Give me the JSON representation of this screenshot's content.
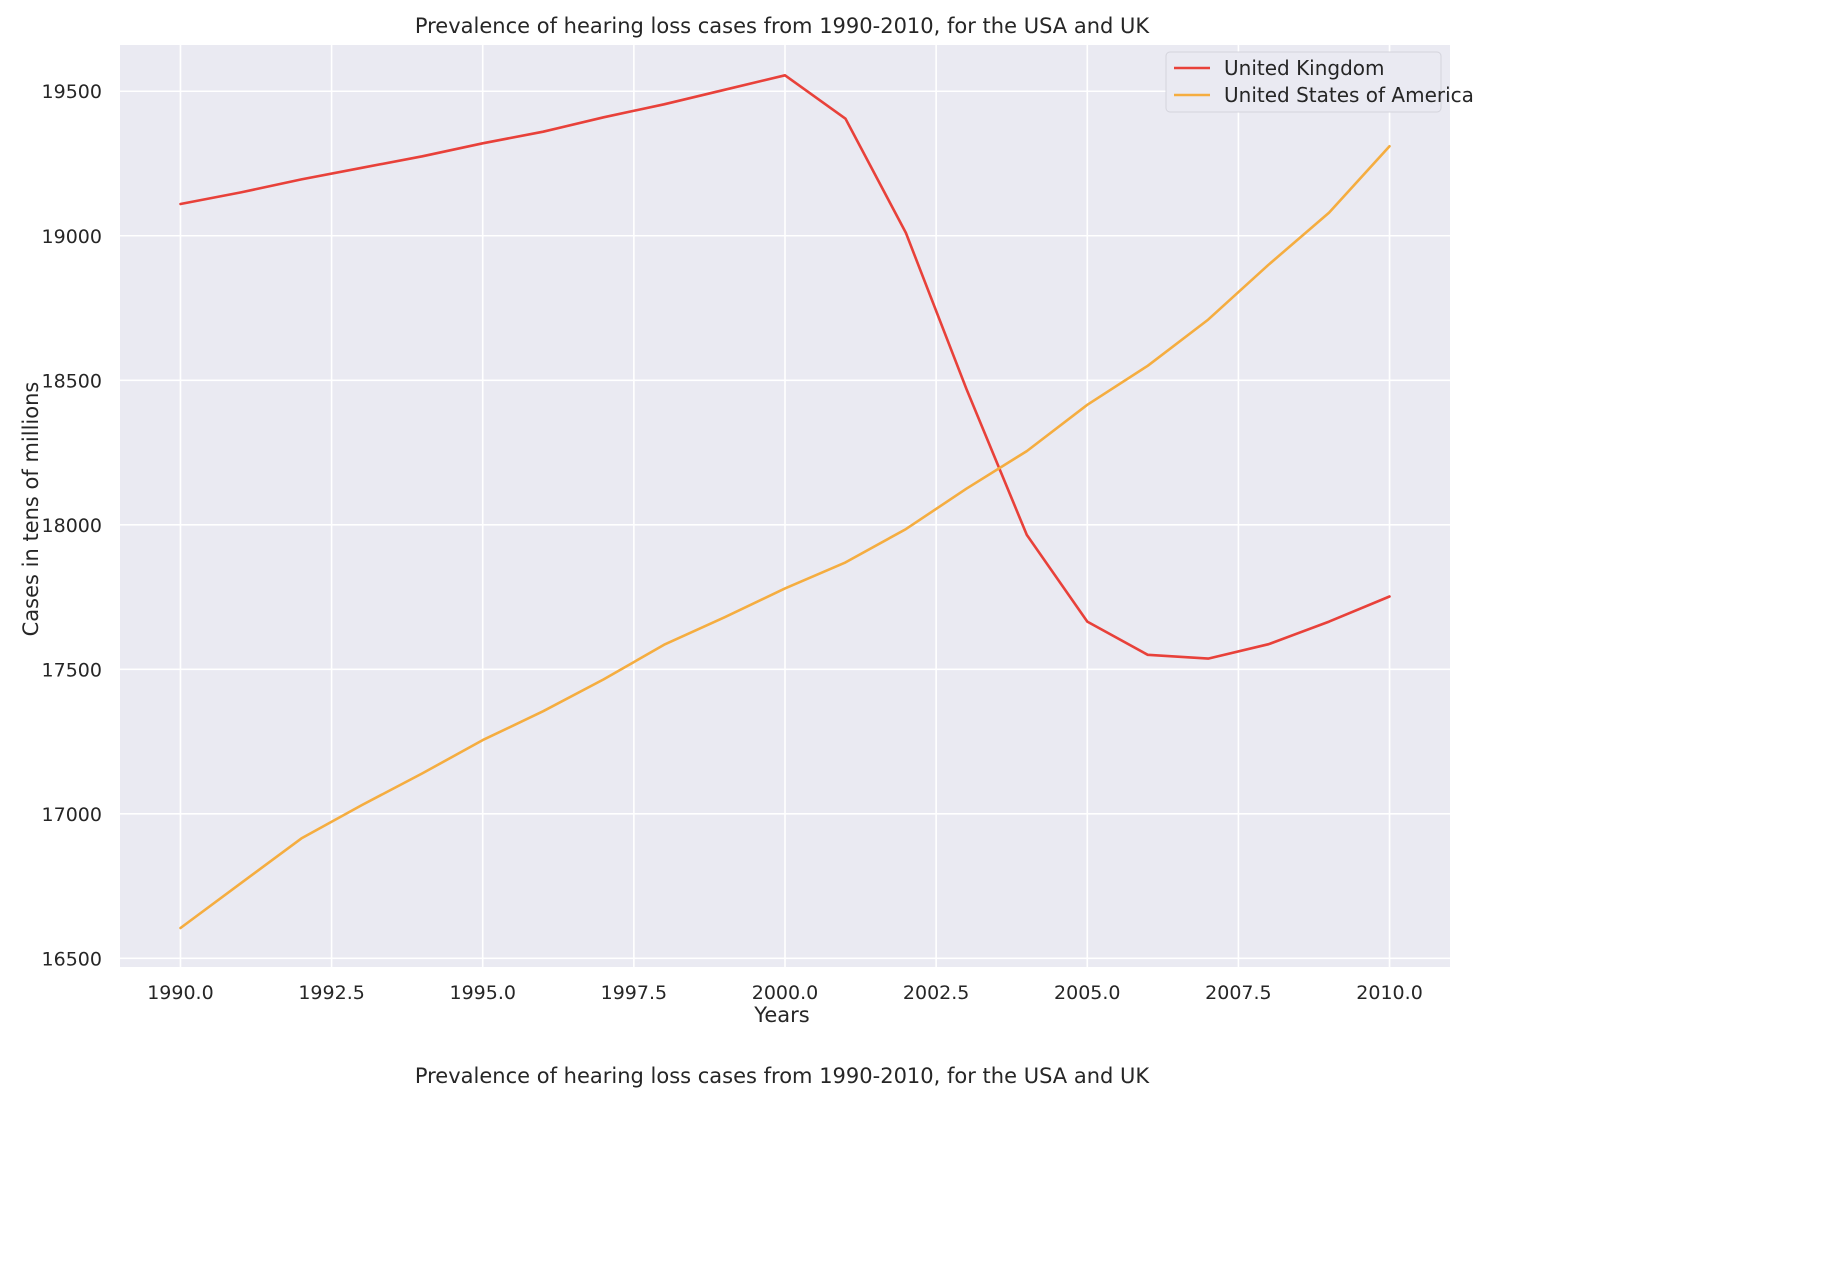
{
  "chart_data": {
    "type": "line",
    "title": "Prevalence of hearing loss cases from 1990-2010, for the USA and UK",
    "caption": "Prevalence of hearing loss cases from 1990-2010, for the USA and UK",
    "xlabel": "Years",
    "ylabel": "Cases in tens of millions",
    "x": [
      1990,
      1991,
      1992,
      1993,
      1994,
      1995,
      1996,
      1997,
      1998,
      1999,
      2000,
      2001,
      2002,
      2003,
      2004,
      2005,
      2006,
      2007,
      2008,
      2009,
      2010
    ],
    "xlim": [
      1989,
      2011
    ],
    "ylim": [
      16470,
      19660
    ],
    "xticks": [
      1990,
      1992.5,
      1995,
      1997.5,
      2000,
      2002.5,
      2005,
      2007.5,
      2010
    ],
    "xtick_labels": [
      "1990.0",
      "1992.5",
      "1995.0",
      "1997.5",
      "2000.0",
      "2002.5",
      "2005.0",
      "2007.5",
      "2010.0"
    ],
    "yticks": [
      16500,
      17000,
      17500,
      18000,
      18500,
      19000,
      19500
    ],
    "ytick_labels": [
      "16500",
      "17000",
      "17500",
      "18000",
      "18500",
      "19000",
      "19500"
    ],
    "grid": true,
    "legend_position": "top-right",
    "background_color": "#eaeaf2",
    "grid_color": "#ffffff",
    "series": [
      {
        "name": "United Kingdom",
        "color": "#e8413a",
        "values": [
          19110,
          19150,
          19195,
          19235,
          19275,
          19320,
          19360,
          19410,
          19455,
          19505,
          19555,
          19405,
          19010,
          18470,
          17965,
          17665,
          17550,
          17537,
          17587,
          17665,
          17752
        ]
      },
      {
        "name": "United States of America",
        "color": "#f5ad40",
        "values": [
          16605,
          16760,
          16915,
          17030,
          17140,
          17255,
          17355,
          17465,
          17585,
          17680,
          17780,
          17870,
          17985,
          18125,
          18255,
          18415,
          18550,
          18710,
          18900,
          19080,
          19310
        ]
      }
    ]
  }
}
